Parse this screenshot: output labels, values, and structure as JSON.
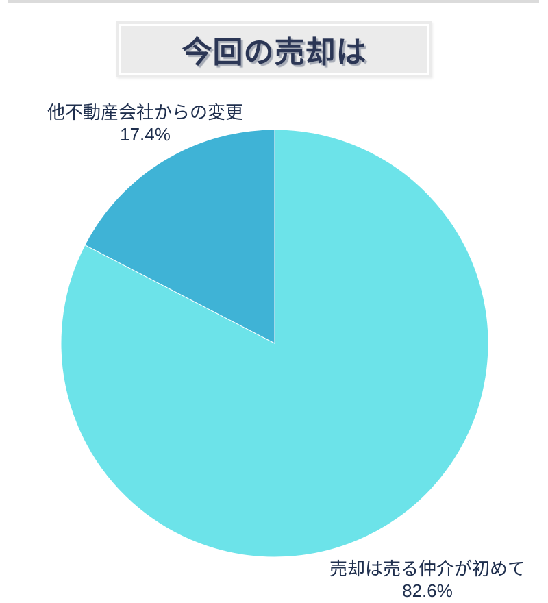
{
  "page": {
    "background": "#ffffff",
    "top_bar_color": "#dbdbdb"
  },
  "header": {
    "title": "今回の売却は",
    "title_color": "#2b3655",
    "box_background": "#ebebeb",
    "inner_border_color": "#ffffff"
  },
  "chart_data": {
    "type": "pie",
    "title": "今回の売却は",
    "start_angle_deg": 0,
    "direction": "clockwise",
    "legend_position": "none",
    "label_style": "outside",
    "label_text_color": "#1e2e4d",
    "slices": [
      {
        "label": "売却は売る仲介が初めて",
        "value_pct": 82.6,
        "pct_label": "82.6%",
        "color": "#6ce3e9",
        "label_position": "bottom-right"
      },
      {
        "label": "他不動産会社からの変更",
        "value_pct": 17.4,
        "pct_label": "17.4%",
        "color": "#3fb3d6",
        "label_position": "top-left"
      }
    ]
  }
}
